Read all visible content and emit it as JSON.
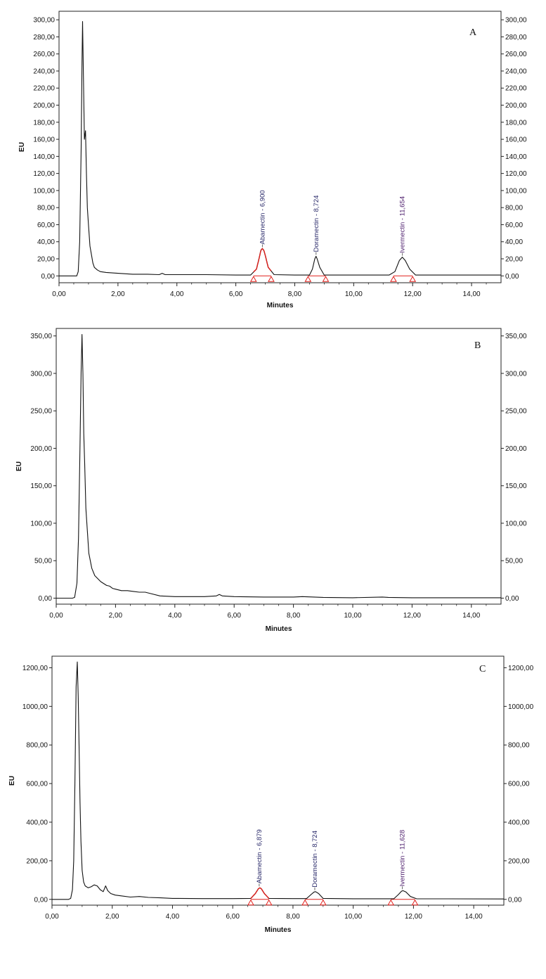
{
  "chart_data": [
    {
      "type": "line",
      "panel_label": "A",
      "xlabel": "Minutes",
      "ylabel": "EU",
      "xlim": [
        0,
        15
      ],
      "ylim": [
        -8,
        310
      ],
      "x_ticks": [
        "0,00",
        "2,00",
        "4,00",
        "6,00",
        "8,00",
        "10,00",
        "12,00",
        "14,00"
      ],
      "y_ticks": [
        "0,00",
        "20,00",
        "40,00",
        "60,00",
        "80,00",
        "100,00",
        "120,00",
        "140,00",
        "160,00",
        "180,00",
        "200,00",
        "220,00",
        "240,00",
        "260,00",
        "280,00",
        "300,00"
      ],
      "y_tick_values": [
        0,
        20,
        40,
        60,
        80,
        100,
        120,
        140,
        160,
        180,
        200,
        220,
        240,
        260,
        280,
        300
      ],
      "grid": false,
      "series": [
        {
          "x": [
            0,
            0.6,
            0.65,
            0.7,
            0.75,
            0.78,
            0.8,
            0.83,
            0.86,
            0.9,
            0.93,
            0.96,
            1.0,
            1.05,
            1.1,
            1.15,
            1.2,
            1.3,
            1.4,
            1.6,
            2.0,
            2.5,
            3.0,
            3.4,
            3.5,
            3.6,
            4.0,
            5.0,
            6.0,
            6.5,
            6.7,
            6.8,
            6.85,
            6.9,
            6.95,
            7.0,
            7.1,
            7.3,
            8.0,
            8.5,
            8.6,
            8.68,
            8.72,
            8.76,
            8.85,
            9.0,
            10.0,
            11.2,
            11.4,
            11.55,
            11.65,
            11.75,
            11.9,
            12.1,
            13.0,
            15.0
          ],
          "y": [
            0,
            0,
            5,
            40,
            150,
            250,
            298,
            230,
            160,
            170,
            120,
            80,
            60,
            35,
            25,
            15,
            10,
            7,
            5,
            4,
            3,
            2,
            2,
            1.5,
            3,
            1.5,
            1.5,
            1.5,
            1,
            1,
            8,
            22,
            30,
            32,
            30,
            24,
            10,
            1.5,
            1,
            1,
            8,
            20,
            23,
            20,
            10,
            1,
            1,
            1,
            5,
            18,
            22,
            18,
            8,
            1,
            1,
            1
          ]
        }
      ],
      "peaks": [
        {
          "label": "Abamectin - 6,900",
          "rt": 6.9,
          "height": 32,
          "start": 6.6,
          "end": 7.2,
          "highlighted": true
        },
        {
          "label": "Doramectin - 8,724",
          "rt": 8.724,
          "height": 23,
          "start": 8.45,
          "end": 9.05,
          "highlighted": false
        },
        {
          "label": "Ivermectin - 11,654",
          "rt": 11.654,
          "height": 22,
          "start": 11.35,
          "end": 12.0,
          "highlighted": false
        }
      ]
    },
    {
      "type": "line",
      "panel_label": "B",
      "xlabel": "Minutes",
      "ylabel": "EU",
      "xlim": [
        0,
        15
      ],
      "ylim": [
        -8,
        360
      ],
      "x_ticks": [
        "0,00",
        "2,00",
        "4,00",
        "6,00",
        "8,00",
        "10,00",
        "12,00",
        "14,00"
      ],
      "y_ticks": [
        "0,00",
        "50,00",
        "100,00",
        "150,00",
        "200,00",
        "250,00",
        "300,00",
        "350,00"
      ],
      "y_tick_values": [
        0,
        50,
        100,
        150,
        200,
        250,
        300,
        350
      ],
      "grid": false,
      "series": [
        {
          "x": [
            0,
            0.55,
            0.62,
            0.7,
            0.75,
            0.8,
            0.84,
            0.87,
            0.9,
            0.93,
            0.96,
            1.0,
            1.05,
            1.1,
            1.2,
            1.3,
            1.5,
            1.7,
            1.8,
            1.9,
            2.0,
            2.2,
            2.4,
            2.6,
            2.8,
            3.0,
            3.2,
            3.5,
            4.0,
            5.0,
            5.4,
            5.5,
            5.6,
            6.0,
            7.0,
            8.0,
            8.3,
            9.0,
            10.0,
            11.0,
            11.2,
            12.0,
            15.0
          ],
          "y": [
            0,
            0,
            1,
            20,
            80,
            200,
            300,
            352,
            300,
            220,
            180,
            120,
            90,
            60,
            40,
            30,
            22,
            17,
            16,
            13,
            12,
            10,
            10,
            9,
            8,
            8,
            6,
            3,
            2,
            2,
            3,
            5,
            3,
            2,
            1.5,
            1.5,
            2,
            1,
            0.5,
            1.5,
            1,
            0.5,
            0.5
          ]
        }
      ],
      "peaks": []
    },
    {
      "type": "line",
      "panel_label": "C",
      "xlabel": "Minutes",
      "ylabel": "EU",
      "xlim": [
        0,
        15
      ],
      "ylim": [
        -30,
        1260
      ],
      "x_ticks": [
        "0,00",
        "2,00",
        "4,00",
        "6,00",
        "8,00",
        "10,00",
        "12,00",
        "14,00"
      ],
      "y_ticks": [
        "0,00",
        "200,00",
        "400,00",
        "600,00",
        "800,00",
        "1000,00",
        "1200,00"
      ],
      "y_tick_values": [
        0,
        200,
        400,
        600,
        800,
        1000,
        1200
      ],
      "grid": false,
      "series": [
        {
          "x": [
            0,
            0.55,
            0.62,
            0.68,
            0.72,
            0.76,
            0.8,
            0.84,
            0.87,
            0.9,
            0.93,
            0.96,
            1.0,
            1.05,
            1.1,
            1.2,
            1.3,
            1.4,
            1.5,
            1.6,
            1.7,
            1.78,
            1.85,
            1.95,
            2.1,
            2.3,
            2.6,
            2.9,
            3.2,
            3.6,
            4.0,
            5.0,
            6.0,
            6.6,
            6.75,
            6.85,
            6.9,
            6.95,
            7.05,
            7.2,
            8.0,
            8.45,
            8.6,
            8.7,
            8.75,
            8.85,
            9.0,
            10.0,
            11.35,
            11.5,
            11.6,
            11.65,
            11.75,
            11.9,
            12.1,
            15.0
          ],
          "y": [
            0,
            0,
            5,
            50,
            200,
            600,
            1100,
            1230,
            1050,
            780,
            500,
            300,
            150,
            90,
            70,
            60,
            65,
            75,
            70,
            50,
            40,
            70,
            45,
            30,
            22,
            18,
            12,
            15,
            10,
            8,
            5,
            4,
            4,
            5,
            30,
            55,
            60,
            55,
            30,
            5,
            4,
            4,
            25,
            38,
            40,
            30,
            5,
            3,
            3,
            25,
            42,
            45,
            38,
            15,
            3,
            2
          ]
        }
      ],
      "peaks": [
        {
          "label": "Abamectin - 6,879",
          "rt": 6.879,
          "height": 60,
          "start": 6.6,
          "end": 7.2,
          "highlighted": true
        },
        {
          "label": "Doramectin - 8,724",
          "rt": 8.724,
          "height": 40,
          "start": 8.4,
          "end": 9.0,
          "highlighted": false
        },
        {
          "label": "Ivermectin - 11,628",
          "rt": 11.628,
          "height": 45,
          "start": 11.25,
          "end": 12.05,
          "highlighted": false
        }
      ]
    }
  ]
}
